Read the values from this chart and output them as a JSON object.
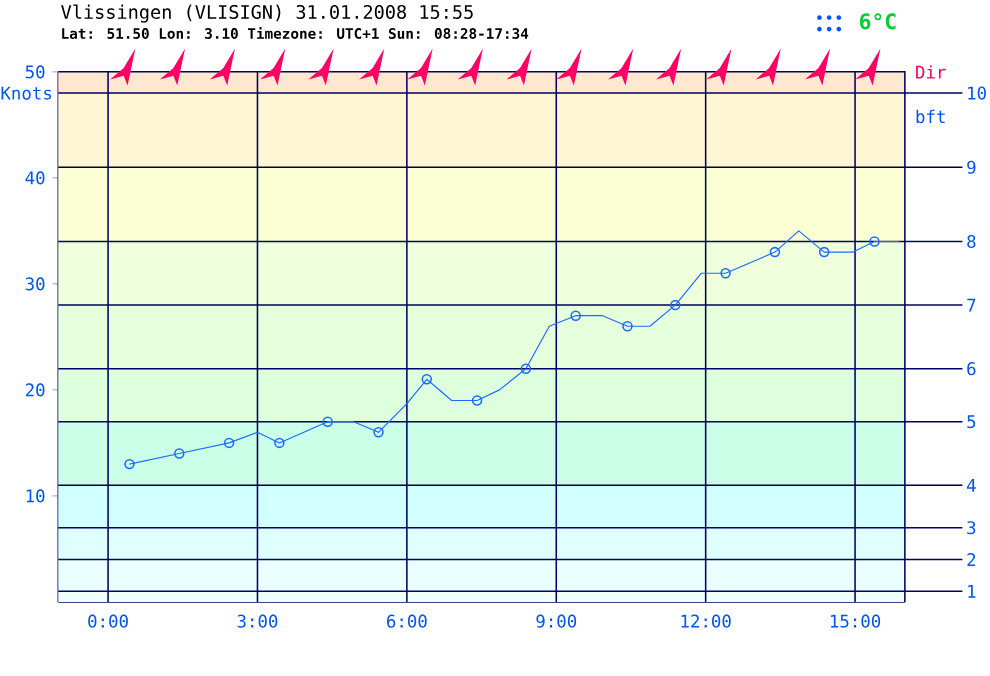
{
  "chart_data": {
    "type": "line",
    "title": "Vlissingen (VLISIGN) 31.01.2008 15:55",
    "subtitle": "Lat: 51.50 Lon: 3.10 Timezone: UTC+1 Sun: 08:28-17:34",
    "ylabel": "Knots",
    "y2label": "bft",
    "annotations": [
      "Dir",
      "6°C",
      "1",
      "2",
      "3",
      "4",
      "5",
      "6",
      "7",
      "8",
      "9",
      "10"
    ],
    "xlim": [
      -1,
      16
    ],
    "ylim": [
      0,
      50
    ],
    "xticks": [
      {
        "value": 0,
        "label": "0:00"
      },
      {
        "value": 3,
        "label": "3:00"
      },
      {
        "value": 6,
        "label": "6:00"
      },
      {
        "value": 9,
        "label": "9:00"
      },
      {
        "value": 12,
        "label": "12:00"
      },
      {
        "value": 15,
        "label": "15:00"
      }
    ],
    "yticks": [
      10,
      20,
      30,
      40,
      50
    ],
    "grid": "x",
    "ref_lines": [
      {
        "axis": "y",
        "value": 1,
        "color": "#000066"
      },
      {
        "axis": "y",
        "value": 4,
        "color": "#000066"
      },
      {
        "axis": "y",
        "value": 7,
        "color": "#000066"
      },
      {
        "axis": "y",
        "value": 11,
        "color": "#000033"
      },
      {
        "axis": "y",
        "value": 17,
        "color": "#000066"
      },
      {
        "axis": "y",
        "value": 22,
        "color": "#000066"
      },
      {
        "axis": "y",
        "value": 28,
        "color": "#000066"
      },
      {
        "axis": "y",
        "value": 34,
        "color": "#000066"
      },
      {
        "axis": "y",
        "value": 41,
        "color": "#000033"
      },
      {
        "axis": "y",
        "value": 48,
        "color": "#000066"
      }
    ],
    "bands": [
      {
        "axis": "y",
        "from": 0,
        "to": 1,
        "color": "#f0ffff"
      },
      {
        "axis": "y",
        "from": 1,
        "to": 4,
        "color": "#eaffff"
      },
      {
        "axis": "y",
        "from": 4,
        "to": 7,
        "color": "#e0ffff"
      },
      {
        "axis": "y",
        "from": 7,
        "to": 11,
        "color": "#d2ffff"
      },
      {
        "axis": "y",
        "from": 11,
        "to": 17,
        "color": "#ccffe8"
      },
      {
        "axis": "y",
        "from": 17,
        "to": 22,
        "color": "#ddffdd"
      },
      {
        "axis": "y",
        "from": 22,
        "to": 28,
        "color": "#e6ffdc"
      },
      {
        "axis": "y",
        "from": 28,
        "to": 34,
        "color": "#f0ffdc"
      },
      {
        "axis": "y",
        "from": 34,
        "to": 41,
        "color": "#fcffd4"
      },
      {
        "axis": "y",
        "from": 41,
        "to": 48,
        "color": "#fff6d4"
      },
      {
        "axis": "y",
        "from": 48,
        "to": 50,
        "color": "#ffe8cf"
      }
    ],
    "series": [
      {
        "marker": "none",
        "color": "#1a6cff",
        "x": [
          0.43,
          1.43,
          2.43,
          3.0,
          3.44,
          4.41,
          4.93,
          5.43,
          6.0,
          6.4,
          6.9,
          7.41,
          7.86,
          8.39,
          8.86,
          9.39,
          9.93,
          10.43,
          10.88,
          11.39,
          11.91,
          12.4,
          13.39,
          13.87,
          14.38,
          14.96,
          15.39,
          15.88
        ],
        "values": [
          13,
          14,
          15,
          16,
          15,
          17,
          17,
          16,
          18.7,
          21,
          19,
          19,
          20,
          22,
          26,
          27,
          27,
          26,
          26,
          28,
          31,
          31,
          33,
          35,
          33,
          33,
          34,
          34
        ]
      },
      {
        "type": "scatter",
        "marker": "circle",
        "color": "#1a6cff",
        "x": [
          0.43,
          1.43,
          2.43,
          3.44,
          4.41,
          5.43,
          6.4,
          7.41,
          8.39,
          9.39,
          10.43,
          11.39,
          12.4,
          13.39,
          14.38,
          15.39
        ],
        "values": [
          13,
          14,
          15,
          15,
          17,
          16,
          21,
          19,
          22,
          27,
          26,
          28,
          31,
          33,
          33,
          34
        ]
      }
    ]
  }
}
